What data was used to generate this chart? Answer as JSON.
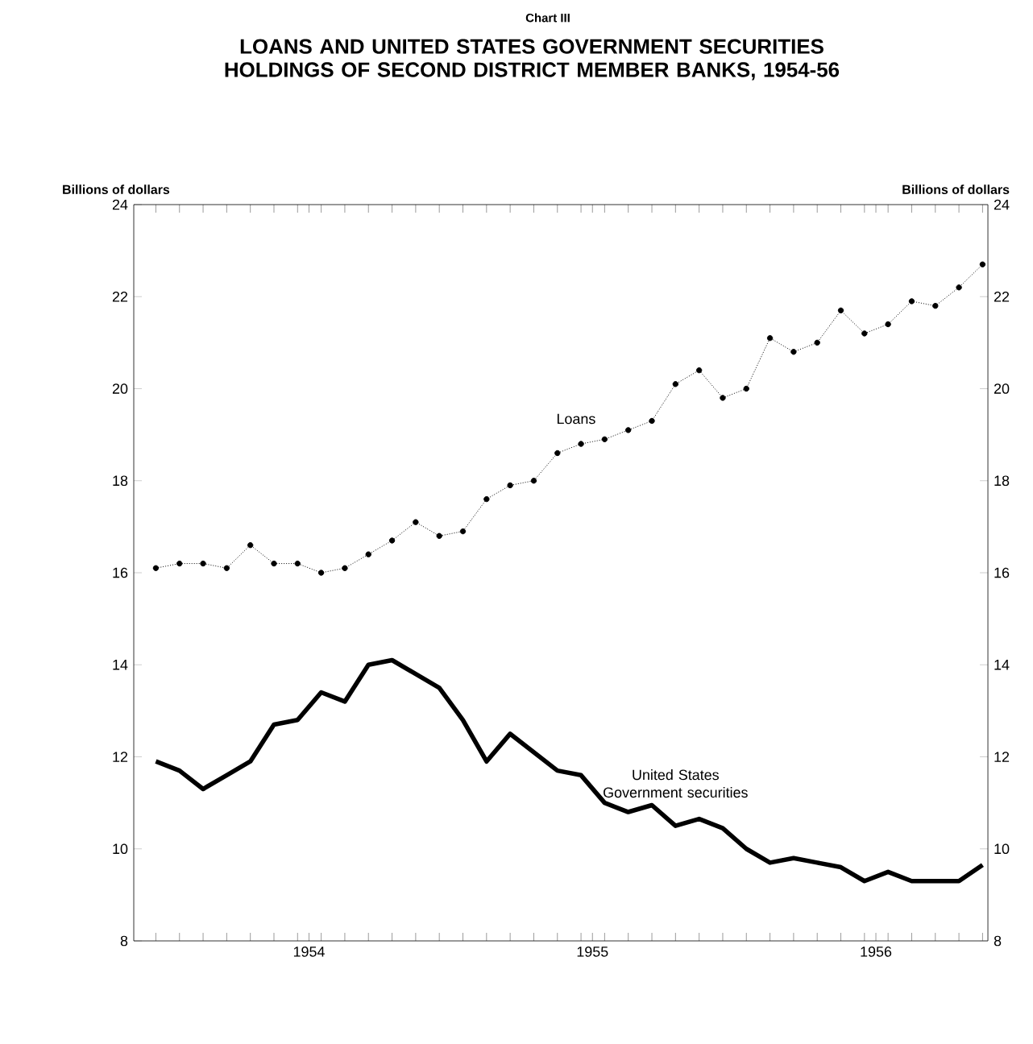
{
  "chart_data": {
    "type": "line",
    "title": "Chart III",
    "subtitle": "LOANS AND UNITED STATES GOVERNMENT SECURITIES HOLDINGS OF SECOND DISTRICT MEMBER BANKS, 1954-56",
    "ylabel": "Billions of dollars",
    "y2label": "Billions of dollars",
    "x": [
      "1954-01",
      "1954-02",
      "1954-03",
      "1954-04",
      "1954-05",
      "1954-06",
      "1954-07",
      "1954-08",
      "1954-09",
      "1954-10",
      "1954-11",
      "1954-12",
      "1955-01",
      "1955-02",
      "1955-03",
      "1955-04",
      "1955-05",
      "1955-06",
      "1955-07",
      "1955-08",
      "1955-09",
      "1955-10",
      "1955-11",
      "1955-12",
      "1956-01",
      "1956-02",
      "1956-03",
      "1956-04",
      "1956-05",
      "1956-06",
      "1956-07",
      "1956-08",
      "1956-09",
      "1956-10",
      "1956-11",
      "1956-12"
    ],
    "series": [
      {
        "name": "Loans",
        "color": "#000000",
        "marker": "circle",
        "line_style": "dotted",
        "values": [
          16.1,
          16.2,
          16.2,
          16.1,
          16.6,
          16.2,
          16.2,
          16.0,
          16.1,
          16.4,
          16.7,
          17.1,
          16.8,
          16.9,
          17.6,
          17.9,
          18.0,
          18.6,
          18.8,
          18.9,
          19.1,
          19.3,
          20.1,
          20.4,
          19.8,
          20.0,
          21.1,
          20.8,
          21.0,
          21.7,
          21.2,
          21.4,
          21.9,
          21.8,
          22.2,
          22.7
        ]
      },
      {
        "name": "United States Government securities",
        "color": "#000000",
        "marker": "none",
        "line_style": "solid",
        "values": [
          11.9,
          11.7,
          11.3,
          11.6,
          11.9,
          12.7,
          12.8,
          13.4,
          13.2,
          14.0,
          14.1,
          13.8,
          13.5,
          12.8,
          11.9,
          12.5,
          12.1,
          11.7,
          11.6,
          11.0,
          10.8,
          10.95,
          10.5,
          10.65,
          10.45,
          10.0,
          9.7,
          9.8,
          9.7,
          9.6,
          9.3,
          9.5,
          9.3,
          9.3,
          9.3,
          9.65
        ]
      }
    ],
    "xlim": [
      "1953-12-03",
      "1956-12-08"
    ],
    "xticks": [
      {
        "value": "1954-01",
        "label": null
      },
      {
        "value": "1954-02",
        "label": null
      },
      {
        "value": "1954-03",
        "label": null
      },
      {
        "value": "1954-04",
        "label": null
      },
      {
        "value": "1954-05",
        "label": null
      },
      {
        "value": "1954-06",
        "label": null
      },
      {
        "value": "1954-07",
        "label": null
      },
      {
        "value": "1954-07-16",
        "label": "1954"
      },
      {
        "value": "1954-08",
        "label": null
      },
      {
        "value": "1954-09",
        "label": null
      },
      {
        "value": "1954-10",
        "label": null
      },
      {
        "value": "1954-11",
        "label": null
      },
      {
        "value": "1954-12",
        "label": null
      },
      {
        "value": "1955-01",
        "label": null
      },
      {
        "value": "1955-02",
        "label": null
      },
      {
        "value": "1955-03",
        "label": null
      },
      {
        "value": "1955-04",
        "label": null
      },
      {
        "value": "1955-05",
        "label": null
      },
      {
        "value": "1955-06",
        "label": null
      },
      {
        "value": "1955-07",
        "label": null
      },
      {
        "value": "1955-07-16",
        "label": "1955"
      },
      {
        "value": "1955-08",
        "label": null
      },
      {
        "value": "1955-09",
        "label": null
      },
      {
        "value": "1955-10",
        "label": null
      },
      {
        "value": "1955-11",
        "label": null
      },
      {
        "value": "1955-12",
        "label": null
      },
      {
        "value": "1956-01",
        "label": null
      },
      {
        "value": "1956-02",
        "label": null
      },
      {
        "value": "1956-03",
        "label": null
      },
      {
        "value": "1956-04",
        "label": null
      },
      {
        "value": "1956-05",
        "label": null
      },
      {
        "value": "1956-06",
        "label": null
      },
      {
        "value": "1956-07",
        "label": null
      },
      {
        "value": "1956-07-16",
        "label": "1956"
      },
      {
        "value": "1956-08",
        "label": null
      },
      {
        "value": "1956-09",
        "label": null
      },
      {
        "value": "1956-10",
        "label": null
      },
      {
        "value": "1956-11",
        "label": null
      },
      {
        "value": "1956-12",
        "label": null
      }
    ],
    "ylim": [
      8,
      24
    ],
    "yticks": [
      8,
      10,
      12,
      14,
      16,
      18,
      20,
      22,
      24
    ],
    "y2lim": [
      8,
      24
    ],
    "y2ticks": [
      8,
      10,
      12,
      14,
      16,
      18,
      20,
      22,
      24
    ],
    "grid": false,
    "legend": false
  }
}
